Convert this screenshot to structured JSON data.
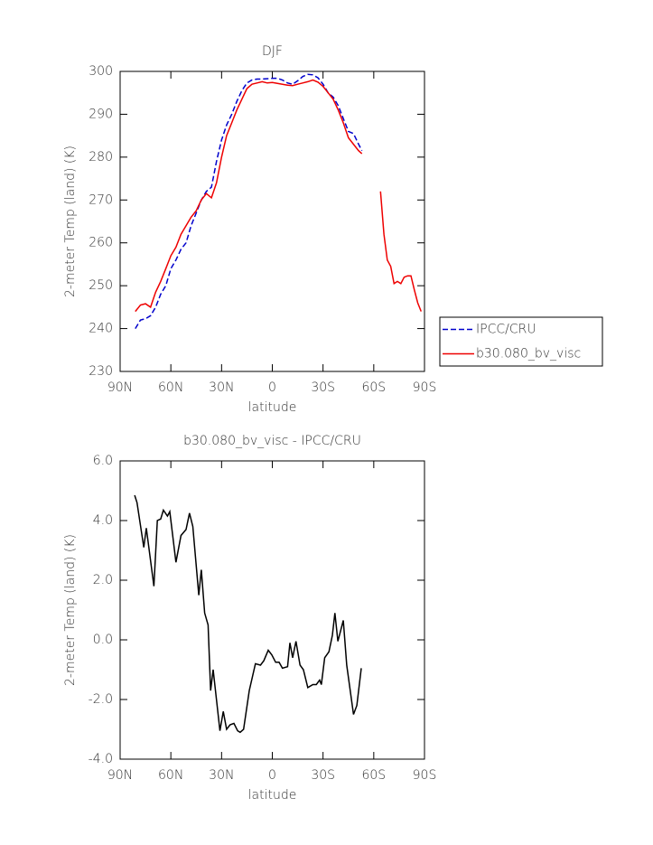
{
  "chart_data": [
    {
      "type": "line",
      "title": "DJF",
      "xlabel": "latitude",
      "ylabel": "2-meter Temp (land) (K)",
      "x": [
        81,
        78,
        75,
        72,
        69,
        66,
        63,
        60,
        57,
        54,
        51,
        48,
        45,
        42,
        39,
        36,
        33,
        30,
        27,
        24,
        21,
        18,
        15,
        12,
        9,
        6,
        3,
        0,
        -3,
        -6,
        -9,
        -12,
        -15,
        -18,
        -21,
        -24,
        -27,
        -30,
        -33,
        -36,
        -39,
        -42,
        -45,
        -48,
        -51,
        -53,
        -58,
        -64,
        -66,
        -68,
        -70,
        -72,
        -74,
        -76,
        -78,
        -80,
        -82,
        -84,
        -86,
        -88
      ],
      "series": [
        {
          "name": "IPCC/CRU",
          "color": "#0000cc",
          "dashed": true,
          "values": [
            240,
            242,
            242.3,
            243,
            245,
            248,
            250,
            254,
            256,
            258.5,
            260,
            264,
            267,
            270,
            272,
            273,
            279,
            284,
            287.5,
            290,
            293,
            295.5,
            297.3,
            298,
            298.2,
            298.2,
            298.3,
            298.4,
            298.4,
            298,
            297.3,
            297,
            297.8,
            298.8,
            299.3,
            299.2,
            298.5,
            297,
            295,
            294,
            292,
            289,
            286,
            285.5,
            283,
            281.5,
            null,
            null,
            null,
            null,
            null,
            null,
            null,
            null,
            null,
            null,
            null,
            null,
            null,
            null
          ]
        },
        {
          "name": "b30.080_bv_visc",
          "color": "#ee0000",
          "dashed": false,
          "values": [
            244,
            245.5,
            245.8,
            245,
            248.5,
            251,
            254,
            257,
            259,
            262,
            264,
            266,
            267.5,
            270,
            271.5,
            270.5,
            274,
            280,
            285,
            288,
            291,
            293.5,
            296,
            297,
            297.3,
            297.6,
            297.3,
            297.4,
            297.2,
            297,
            296.8,
            296.7,
            297,
            297.3,
            297.6,
            298,
            297.5,
            296.5,
            295,
            293.5,
            291,
            288,
            284.5,
            283,
            281.5,
            280.8,
            null,
            272,
            262,
            256,
            254.5,
            250.5,
            251,
            250.5,
            252,
            252.3,
            252.3,
            249,
            246,
            244
          ]
        }
      ],
      "xlim": [
        90,
        -90
      ],
      "xticks": [
        {
          "value": 90,
          "label": "90N"
        },
        {
          "value": 60,
          "label": "60N"
        },
        {
          "value": 30,
          "label": "30N"
        },
        0,
        {
          "value": -30,
          "label": "30S"
        },
        {
          "value": -60,
          "label": "60S"
        },
        {
          "value": -90,
          "label": "90S"
        }
      ],
      "ylim": [
        230,
        300
      ],
      "yticks": [
        230,
        240,
        250,
        260,
        270,
        280,
        290,
        300
      ],
      "legend": "right"
    },
    {
      "type": "line",
      "title": "b30.080_bv_visc - IPCC/CRU",
      "xlabel": "latitude",
      "ylabel": "2-meter Temp (land) (K)",
      "x": [
        81.4,
        80,
        76,
        74.5,
        70,
        68,
        66,
        64.4,
        62,
        60.6,
        57,
        54,
        51,
        49,
        47,
        43.5,
        42,
        40,
        38,
        36.5,
        35,
        31,
        29,
        27,
        25,
        22.7,
        20.5,
        19,
        17,
        13.6,
        10,
        7,
        5,
        2.4,
        0.3,
        -2,
        -4,
        -6,
        -9,
        -10.4,
        -12,
        -14,
        -16.4,
        -18.4,
        -21,
        -24,
        -26,
        -28,
        -29,
        -31,
        -33.5,
        -35.5,
        -37,
        -38.8,
        -40.4,
        -42,
        -44,
        -48,
        -50,
        -52.6
      ],
      "series": [
        {
          "color": "#000000",
          "dashed": false,
          "values": [
            4.85,
            4.6,
            3.1,
            3.75,
            1.8,
            4.0,
            4.05,
            4.35,
            4.15,
            4.3,
            2.6,
            3.5,
            3.7,
            4.25,
            3.8,
            1.5,
            2.35,
            0.9,
            0.5,
            -1.7,
            -1.0,
            -3.05,
            -2.4,
            -3.0,
            -2.85,
            -2.8,
            -3.05,
            -3.1,
            -3.0,
            -1.7,
            -0.8,
            -0.85,
            -0.7,
            -0.35,
            -0.5,
            -0.75,
            -0.75,
            -0.95,
            -0.9,
            -0.1,
            -0.6,
            -0.05,
            -0.85,
            -1.0,
            -1.6,
            -1.5,
            -1.5,
            -1.35,
            -1.5,
            -0.6,
            -0.4,
            0.15,
            0.9,
            -0.05,
            0.3,
            0.65,
            -0.85,
            -2.5,
            -2.2,
            -0.95
          ]
        }
      ],
      "xlim": [
        90,
        -90
      ],
      "xticks": [
        {
          "value": 90,
          "label": "90N"
        },
        {
          "value": 60,
          "label": "60N"
        },
        {
          "value": 30,
          "label": "30N"
        },
        0,
        {
          "value": -30,
          "label": "30S"
        },
        {
          "value": -60,
          "label": "60S"
        },
        {
          "value": -90,
          "label": "90S"
        }
      ],
      "ylim": [
        -4,
        6
      ],
      "yticks": [
        {
          "value": -4,
          "label": "-4.0"
        },
        {
          "value": -2,
          "label": "-2.0"
        },
        {
          "value": 0,
          "label": "0.0"
        },
        {
          "value": 2,
          "label": "2.0"
        },
        {
          "value": 4,
          "label": "4.0"
        },
        {
          "value": 6,
          "label": "6.0"
        }
      ]
    }
  ]
}
